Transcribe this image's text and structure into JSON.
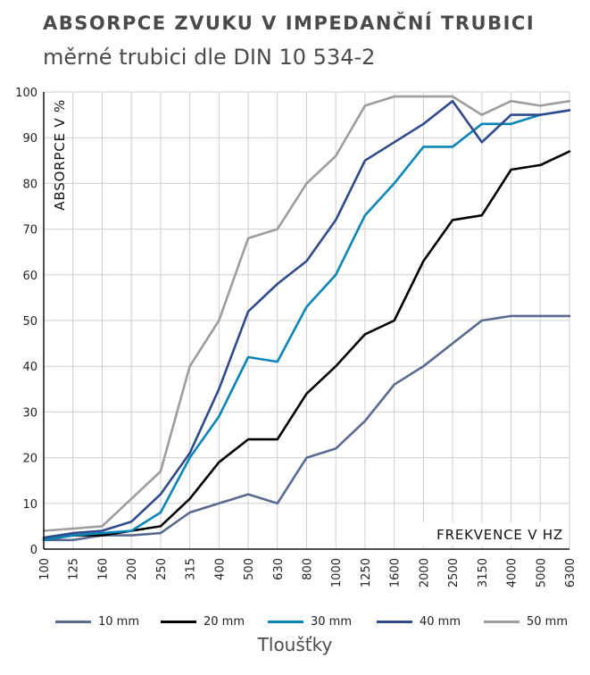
{
  "header": {
    "title": "ABSORPCE ZVUKU V IMPEDANČNÍ TRUBICI",
    "subtitle": "měrné trubici dle DIN 10 534-2"
  },
  "legend_title": "Tloušťky",
  "chart_data": {
    "type": "line",
    "ylabel": "ABSORPCE V %",
    "xlabel": "FREKVENCE V HZ",
    "ylim": [
      0,
      100
    ],
    "yticks": [
      0,
      10,
      20,
      30,
      40,
      50,
      60,
      70,
      80,
      90,
      100
    ],
    "categories": [
      "100",
      "125",
      "160",
      "200",
      "250",
      "315",
      "400",
      "500",
      "630",
      "800",
      "1000",
      "1250",
      "1600",
      "2000",
      "2500",
      "3150",
      "4000",
      "5000",
      "6300"
    ],
    "grid": true,
    "legend_position": "bottom",
    "series": [
      {
        "name": "10 mm",
        "color": "#5a6a8f",
        "values": [
          2,
          2,
          3,
          3,
          3.5,
          8,
          10,
          12,
          10,
          20,
          22,
          28,
          36,
          40,
          45,
          50,
          51,
          51,
          51
        ]
      },
      {
        "name": "20 mm",
        "color": "#000000",
        "values": [
          2,
          3,
          3,
          4,
          5,
          11,
          19,
          24,
          24,
          34,
          40,
          47,
          50,
          63,
          72,
          73,
          83,
          84,
          87
        ]
      },
      {
        "name": "30 mm",
        "color": "#0a85b8",
        "values": [
          2,
          3,
          3.5,
          4,
          8,
          20,
          29,
          42,
          41,
          53,
          60,
          73,
          80,
          88,
          88,
          93,
          93,
          95,
          96
        ]
      },
      {
        "name": "40 mm",
        "color": "#2f4b8c",
        "values": [
          2.5,
          3.5,
          4,
          6,
          12,
          21,
          35,
          52,
          58,
          63,
          72,
          85,
          89,
          93,
          98,
          89,
          95,
          95,
          96
        ]
      },
      {
        "name": "50 mm",
        "color": "#9d9d9d",
        "values": [
          4,
          4.5,
          5,
          11,
          17,
          40,
          50,
          68,
          70,
          80,
          86,
          97,
          99,
          99,
          99,
          95,
          98,
          97,
          98
        ]
      }
    ]
  }
}
